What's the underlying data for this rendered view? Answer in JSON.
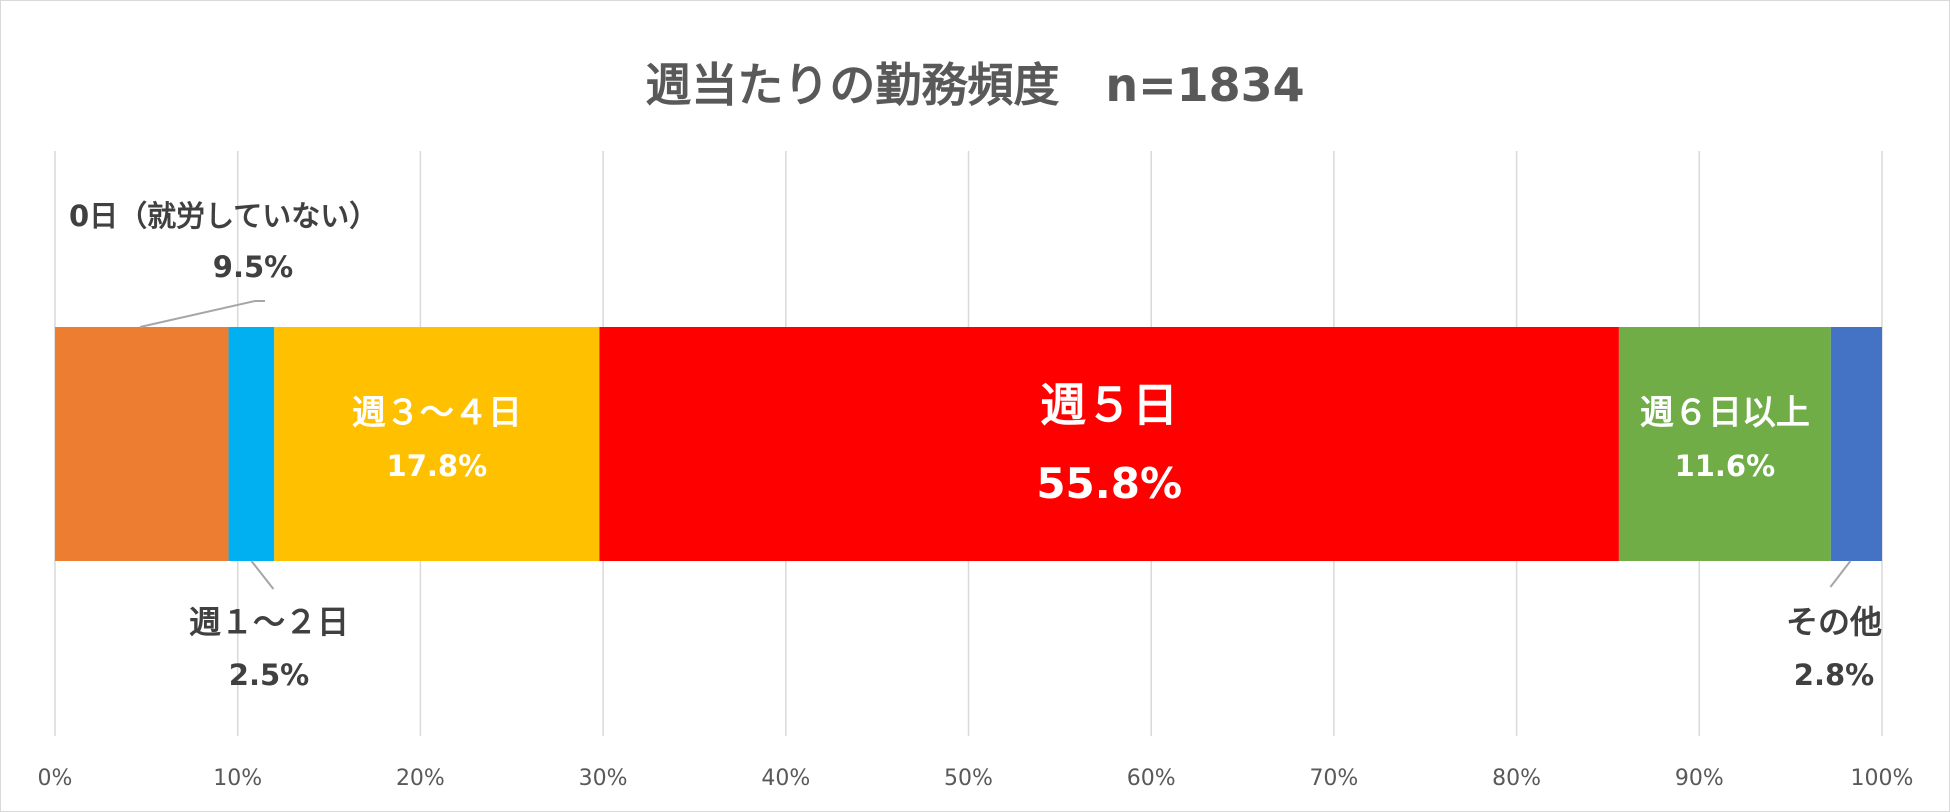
{
  "chart_data": {
    "type": "bar",
    "orientation": "horizontal-stacked-100",
    "title": "週当たりの勤務頻度　n=1834",
    "xlim": [
      0,
      100
    ],
    "x_ticks": [
      "0%",
      "10%",
      "20%",
      "30%",
      "40%",
      "50%",
      "60%",
      "70%",
      "80%",
      "90%",
      "100%"
    ],
    "grid": true,
    "legend": "none",
    "series": [
      {
        "id": "days0",
        "name": "0日（就労していない）",
        "value": 9.5,
        "label": "9.5%",
        "color": "#ED7D31",
        "label_position": "outside-top-left"
      },
      {
        "id": "days1_2",
        "name": "週１～２日",
        "value": 2.5,
        "label": "2.5%",
        "color": "#00B0F0",
        "label_position": "outside-bottom"
      },
      {
        "id": "days3_4",
        "name": "週３～４日",
        "value": 17.8,
        "label": "17.8%",
        "color": "#FFC000",
        "label_position": "inside"
      },
      {
        "id": "days5",
        "name": "週５日",
        "value": 55.8,
        "label": "55.8%",
        "color": "#FF0000",
        "label_position": "inside-large"
      },
      {
        "id": "days6plus",
        "name": "週６日以上",
        "value": 11.6,
        "label": "11.6%",
        "color": "#70AD47",
        "label_position": "inside"
      },
      {
        "id": "other",
        "name": "その他",
        "value": 2.8,
        "label": "2.8%",
        "color": "#4472C4",
        "label_position": "outside-bottom-right"
      }
    ]
  }
}
